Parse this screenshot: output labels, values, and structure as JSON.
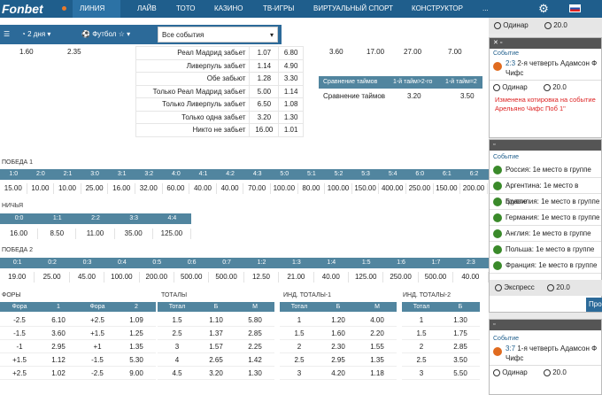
{
  "topbar": {
    "logo": "Fonbet",
    "nav": [
      "ЛИНИЯ",
      "ЛАЙВ",
      "ТОТО",
      "КАЗИНО",
      "ТВ-ИГРЫ",
      "ВИРТУАЛЬНЫЙ СПОРТ",
      "КОНСТРУКТОР",
      "..."
    ]
  },
  "filters": {
    "period": "2 дня",
    "sport": "Футбол",
    "events": "Все события"
  },
  "scorers": {
    "rows": [
      {
        "label": "Реал Мадрид забьет",
        "a": "1.07",
        "b": "6.80"
      },
      {
        "label": "Ливерпуль забьет",
        "a": "1.14",
        "b": "4.90"
      },
      {
        "label": "Обе забьют",
        "a": "1.28",
        "b": "3.30"
      },
      {
        "label": "Только Реал Мадрид забьет",
        "a": "5.00",
        "b": "1.14"
      },
      {
        "label": "Только Ливерпуль забьет",
        "a": "6.50",
        "b": "1.08"
      },
      {
        "label": "Только одна забьет",
        "a": "3.20",
        "b": "1.30"
      },
      {
        "label": "Никто не забьет",
        "a": "16.00",
        "b": "1.01"
      }
    ],
    "top_left": [
      "1.60",
      "2.35"
    ],
    "top_right": [
      "3.60",
      "17.00",
      "27.00",
      "7.00"
    ]
  },
  "compare": {
    "header": [
      "Сравнение таймов",
      "1-й тайм>2-го",
      "1-й тайм=2"
    ],
    "row": [
      "Сравнение таймов",
      "3.20",
      "3.50"
    ]
  },
  "win1": {
    "title": "ПОБЕДА 1",
    "scores": [
      "1:0",
      "2:0",
      "2:1",
      "3:0",
      "3:1",
      "3:2",
      "4:0",
      "4:1",
      "4:2",
      "4:3",
      "5:0",
      "5:1",
      "5:2",
      "5:3",
      "5:4",
      "6:0",
      "6:1",
      "6:2"
    ],
    "odds": [
      "15.00",
      "10.00",
      "10.00",
      "25.00",
      "16.00",
      "32.00",
      "60.00",
      "40.00",
      "40.00",
      "70.00",
      "100.00",
      "80.00",
      "100.00",
      "150.00",
      "400.00",
      "250.00",
      "150.00",
      "200.00"
    ]
  },
  "draw": {
    "title": "НИЧЬЯ",
    "scores": [
      "0:0",
      "1:1",
      "2:2",
      "3:3",
      "4:4"
    ],
    "odds": [
      "16.00",
      "8.50",
      "11.00",
      "35.00",
      "125.00"
    ]
  },
  "win2": {
    "title": "ПОБЕДА 2",
    "scores": [
      "0:1",
      "0:2",
      "0:3",
      "0:4",
      "0:5",
      "0:6",
      "0:7",
      "1:2",
      "1:3",
      "1:4",
      "1:5",
      "1:6",
      "1:7",
      "2:3"
    ],
    "odds": [
      "19.00",
      "25.00",
      "45.00",
      "100.00",
      "200.00",
      "500.00",
      "500.00",
      "12.50",
      "21.00",
      "40.00",
      "125.00",
      "250.00",
      "500.00",
      "40.00"
    ]
  },
  "fora": {
    "title": "ФОРЫ",
    "head": [
      "Фора",
      "1",
      "Фора",
      "2"
    ],
    "rows": [
      [
        "-2.5",
        "6.10",
        "+2.5",
        "1.09"
      ],
      [
        "-1.5",
        "3.60",
        "+1.5",
        "1.25"
      ],
      [
        "-1",
        "2.95",
        "+1",
        "1.35"
      ],
      [
        "+1.5",
        "1.12",
        "-1.5",
        "5.30"
      ],
      [
        "+2.5",
        "1.02",
        "-2.5",
        "9.00"
      ]
    ]
  },
  "totals": {
    "title": "ТОТАЛЫ",
    "head": [
      "Тотал",
      "Б",
      "М"
    ],
    "rows": [
      [
        "1.5",
        "1.10",
        "5.80"
      ],
      [
        "2.5",
        "1.37",
        "2.85"
      ],
      [
        "3",
        "1.57",
        "2.25"
      ],
      [
        "4",
        "2.65",
        "1.42"
      ],
      [
        "4.5",
        "3.20",
        "1.30"
      ]
    ]
  },
  "ind1": {
    "title": "ИНД. ТОТАЛЫ-1",
    "head": [
      "Тотал",
      "Б",
      "М"
    ],
    "rows": [
      [
        "1",
        "1.20",
        "4.00"
      ],
      [
        "1.5",
        "1.60",
        "2.20"
      ],
      [
        "2",
        "2.30",
        "1.55"
      ],
      [
        "2.5",
        "2.95",
        "1.35"
      ],
      [
        "3",
        "4.20",
        "1.18"
      ]
    ]
  },
  "ind2": {
    "title": "ИНД. ТОТАЛЫ-2",
    "head": [
      "Тотал",
      "Б"
    ],
    "rows": [
      [
        "1",
        "1.30"
      ],
      [
        "1.5",
        "1.75"
      ],
      [
        "2",
        "2.85"
      ],
      [
        "2.5",
        "3.50"
      ],
      [
        "3",
        "5.50"
      ]
    ]
  },
  "slip": {
    "single": "Одинар",
    "amount": "20.0",
    "card1_event": "Событие",
    "card1_score": "2:3",
    "card1_text": "2-я четверть Адамсон Ф Чифс",
    "warning": "Изменена котировка на событие Арельяно Чифс Поб 1\"",
    "card2_event": "Событие",
    "selections": [
      "Россия: 1е место в группе",
      "Аргентина: 1е место в группе",
      "Бразилия: 1е место в группе",
      "Германия: 1е место в группе",
      "Англия: 1е место в группе",
      "Польша: 1е место в группе",
      "Франция: 1е место в группе"
    ],
    "express": "Экспресс",
    "pill": "Про",
    "card3_event": "Событие",
    "card3_score": "3:7",
    "card3_text": "1-я четверть Адамсон Ф Чифс"
  }
}
